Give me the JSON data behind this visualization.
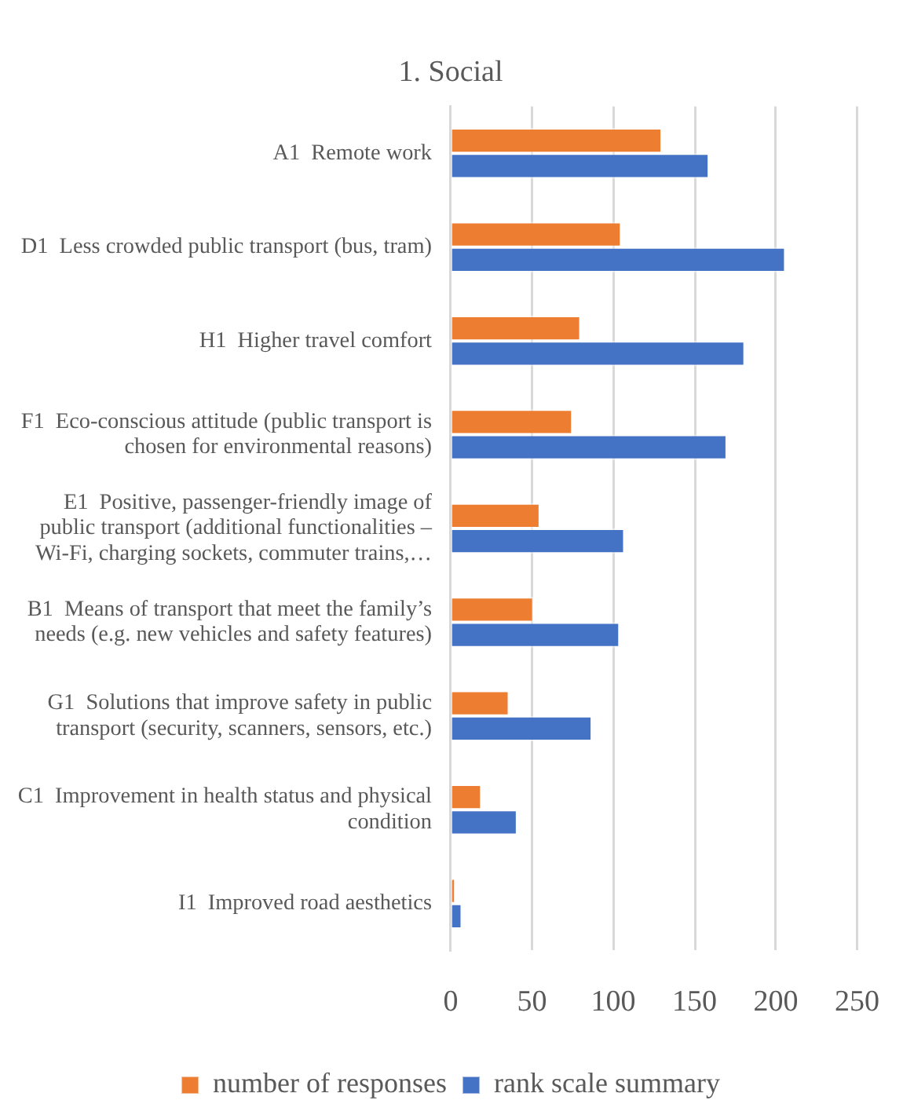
{
  "chart_data": {
    "type": "bar",
    "orientation": "horizontal",
    "title": "1. Social",
    "categories": [
      "A1  Remote work",
      "D1  Less crowded public transport (bus, tram)",
      "H1  Higher travel comfort",
      "F1  Eco-conscious attitude (public transport is chosen for environmental reasons)",
      "E1  Positive, passenger-friendly image of public transport (additional functionalities – Wi-Fi, charging sockets, commuter trains,…",
      "B1  Means of transport that meet the family’s needs (e.g. new vehicles and safety features)",
      "G1  Solutions that improve safety in public transport (security, scanners, sensors, etc.)",
      "C1  Improvement in health status and physical condition",
      "I1  Improved road aesthetics"
    ],
    "series": [
      {
        "name": "number of responses",
        "color": "#ed7d31",
        "values": [
          130,
          105,
          80,
          75,
          55,
          51,
          36,
          19,
          3
        ]
      },
      {
        "name": "rank scale summary",
        "color": "#4472c4",
        "values": [
          159,
          206,
          181,
          170,
          107,
          104,
          87,
          41,
          7
        ]
      }
    ],
    "xlim": [
      0,
      250
    ],
    "xticks": [
      0,
      50,
      100,
      150,
      200,
      250
    ],
    "grid": "x",
    "legend": "bottom"
  }
}
